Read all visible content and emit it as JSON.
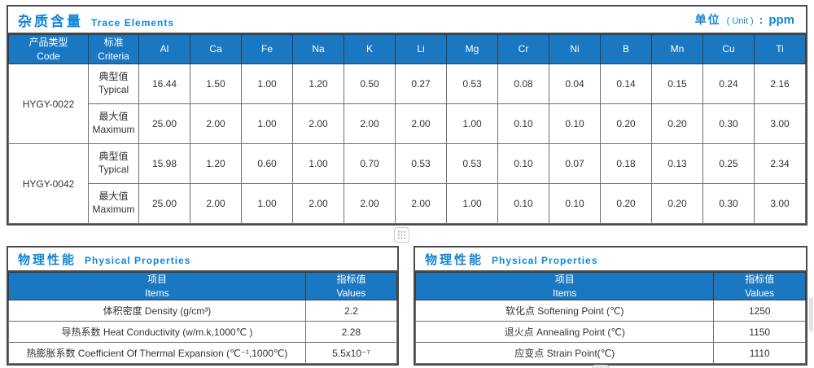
{
  "colors": {
    "header_bg": "#1a78c2",
    "title_text": "#1185d6",
    "outer_border": "#4c4c4c",
    "cell_border": "#707070"
  },
  "icons": {
    "divider_handle": "grid-dots-drag-handle",
    "bottom_handle": "grid-dots-drag-handle-partial",
    "scrollbar": "scrollbar-thumb"
  },
  "trace_table": {
    "title_zh": "杂质含量",
    "title_en": "Trace Elements",
    "unit_zh": "单位",
    "unit_en": "( Unit )",
    "unit_colon": ":",
    "unit_value": "ppm",
    "col1_zh": "产品类型",
    "col1_en": "Code",
    "col2_zh": "标准",
    "col2_en": "Criteria",
    "elements": [
      "Al",
      "Ca",
      "Fe",
      "Na",
      "K",
      "Li",
      "Mg",
      "Cr",
      "Ni",
      "B",
      "Mn",
      "Cu",
      "Ti"
    ],
    "products": [
      {
        "code": "HYGY-0022",
        "rows": [
          {
            "criteria_zh": "典型值",
            "criteria_en": "Typical",
            "values": [
              "16.44",
              "1.50",
              "1.00",
              "1.20",
              "0.50",
              "0.27",
              "0.53",
              "0.08",
              "0.04",
              "0.14",
              "0.15",
              "0.24",
              "2.16"
            ]
          },
          {
            "criteria_zh": "最大值",
            "criteria_en": "Maximum",
            "values": [
              "25.00",
              "2.00",
              "1.00",
              "2.00",
              "2.00",
              "2.00",
              "1.00",
              "0.10",
              "0.10",
              "0.20",
              "0.20",
              "0.30",
              "3.00"
            ]
          }
        ]
      },
      {
        "code": "HYGY-0042",
        "rows": [
          {
            "criteria_zh": "典型值",
            "criteria_en": "Typical",
            "values": [
              "15.98",
              "1.20",
              "0.60",
              "1.00",
              "0.70",
              "0.53",
              "0.53",
              "0.10",
              "0.07",
              "0.18",
              "0.13",
              "0.25",
              "2.34"
            ]
          },
          {
            "criteria_zh": "最大值",
            "criteria_en": "Maximum",
            "values": [
              "25.00",
              "2.00",
              "1.00",
              "2.00",
              "2.00",
              "2.00",
              "1.00",
              "0.10",
              "0.10",
              "0.20",
              "0.20",
              "0.30",
              "3.00"
            ]
          }
        ]
      }
    ]
  },
  "physical_left": {
    "title_zh": "物理性能",
    "title_en": "Physical Properties",
    "items_zh": "项目",
    "items_en": "Items",
    "values_zh": "指标值",
    "values_en": "Values",
    "rows": [
      {
        "item": "体积密度 Density (g/cm³)",
        "value": "2.2"
      },
      {
        "item": "导热系数 Heat Conductivity (w/m.k,1000℃ )",
        "value": "2.28"
      },
      {
        "item": "热膨胀系数 Coefficient Of Thermal Expansion (℃⁻¹,1000℃)",
        "value": "5.5x10⁻⁷"
      }
    ]
  },
  "physical_right": {
    "title_zh": "物理性能",
    "title_en": "Physical Properties",
    "items_zh": "项目",
    "items_en": "Items",
    "values_zh": "指标值",
    "values_en": "Values",
    "rows": [
      {
        "item": "软化点 Softening Point (℃)",
        "value": "1250"
      },
      {
        "item": "退火点 Annealing Point (℃)",
        "value": "1150"
      },
      {
        "item": "应变点 Strain Point(℃)",
        "value": "1110"
      }
    ]
  }
}
